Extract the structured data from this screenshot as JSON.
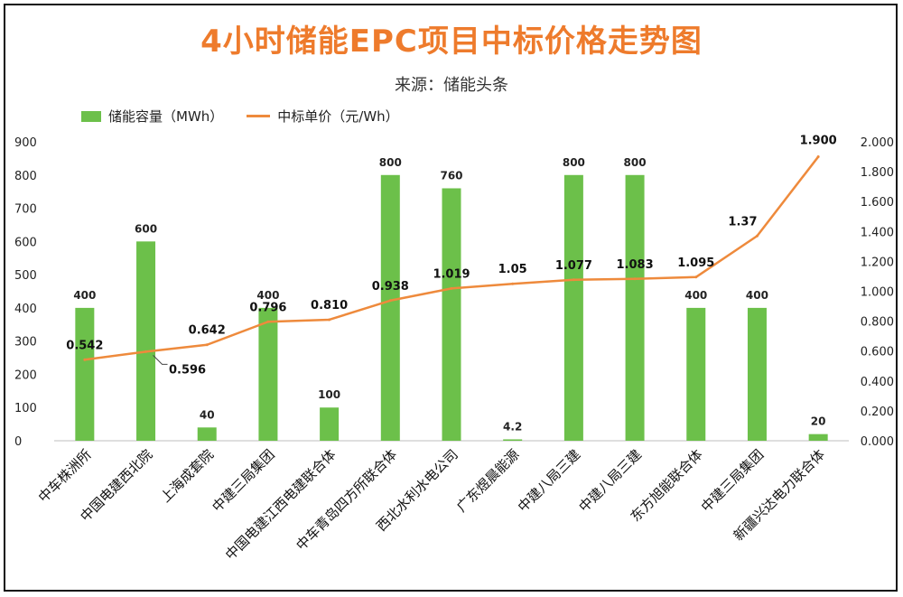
{
  "title": "4小时储能EPC项目中标价格走势图",
  "subtitle": "来源：储能头条",
  "legend": {
    "bar_label": "储能容量（MWh）",
    "line_label": "中标单价（元/Wh）"
  },
  "colors": {
    "title": "#ee7b2c",
    "bar": "#6cc04a",
    "line": "#ee8a3c"
  },
  "chart_data": {
    "type": "bar",
    "title": "4小时储能EPC项目中标价格走势图",
    "categories": [
      "中车株洲所",
      "中国电建西北院",
      "上海成套院",
      "中建三局集团",
      "中国电建江西电建联合体",
      "中车青岛四方所联合体",
      "西北水利水电公司",
      "广东煜晨能源",
      "中建八局三建",
      "中建八局三建",
      "东方旭能联合体",
      "中建三局集团",
      "新疆兴达电力联合体"
    ],
    "series": [
      {
        "name": "储能容量（MWh）",
        "type": "bar",
        "axis": "left",
        "values": [
          400,
          600,
          40,
          400,
          100,
          800,
          760,
          4.2,
          800,
          800,
          400,
          400,
          20
        ],
        "labels": [
          "400",
          "600",
          "40",
          "400",
          "100",
          "800",
          "760",
          "4.2",
          "800",
          "800",
          "400",
          "400",
          "20"
        ]
      },
      {
        "name": "中标单价（元/Wh）",
        "type": "line",
        "axis": "right",
        "values": [
          0.542,
          0.596,
          0.642,
          0.796,
          0.81,
          0.938,
          1.019,
          1.05,
          1.077,
          1.083,
          1.095,
          1.37,
          1.9
        ],
        "labels": [
          "0.542",
          "0.596",
          "0.642",
          "0.796",
          "0.810",
          "0.938",
          "1.019",
          "1.05",
          "1.077",
          "1.083",
          "1.095",
          "1.37",
          "1.900"
        ]
      }
    ],
    "ylim_left": [
      0,
      900
    ],
    "yticks_left": [
      "0",
      "100",
      "200",
      "300",
      "400",
      "500",
      "600",
      "700",
      "800",
      "900"
    ],
    "ylim_right": [
      0,
      2
    ],
    "yticks_right": [
      "0.000",
      "0.200",
      "0.400",
      "0.600",
      "0.800",
      "1.000",
      "1.200",
      "1.400",
      "1.600",
      "1.800",
      "2.000"
    ],
    "grid": false,
    "legend_position": "top-left"
  }
}
